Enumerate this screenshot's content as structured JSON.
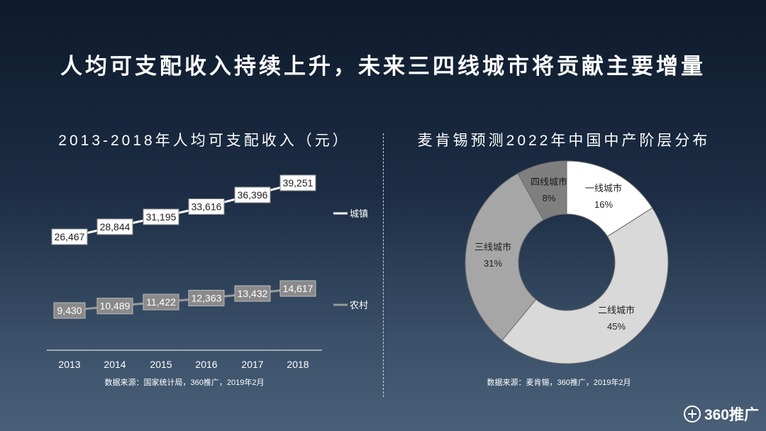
{
  "title": "人均可支配收入持续上升，未来三四线城市将贡献主要增量",
  "left_panel": {
    "subtitle": "2013-2018年人均可支配收入（元）",
    "source": "数据来源：国家统计局，360推广，2019年2月"
  },
  "right_panel": {
    "subtitle": "麦肯锡预测2022年中国中产阶层分布",
    "source": "数据来源：麦肯锡，360推广，2019年2月"
  },
  "logo": {
    "text": "360推广",
    "icon": "plus-circle-icon"
  },
  "chart_data": [
    {
      "type": "line",
      "categories": [
        "2013",
        "2014",
        "2015",
        "2016",
        "2017",
        "2018"
      ],
      "series": [
        {
          "name": "城镇",
          "values": [
            26467,
            28844,
            31195,
            33616,
            36396,
            39251
          ],
          "labels": [
            "26,467",
            "28,844",
            "31,195",
            "33,616",
            "36,396",
            "39,251"
          ],
          "color": "#ffffff"
        },
        {
          "name": "农村",
          "values": [
            9430,
            10489,
            11422,
            12363,
            13432,
            14617
          ],
          "labels": [
            "9,430",
            "10,489",
            "11,422",
            "12,363",
            "13,432",
            "14,617"
          ],
          "color": "#8a8a8a"
        }
      ],
      "grid": false,
      "legend": "right"
    },
    {
      "type": "pie",
      "donut": true,
      "slices": [
        {
          "name": "一线城市",
          "value": 16,
          "label": "16%",
          "color": "#ffffff"
        },
        {
          "name": "二线城市",
          "value": 45,
          "label": "45%",
          "color": "#d9d9d9"
        },
        {
          "name": "三线城市",
          "value": 31,
          "label": "31%",
          "color": "#a6a6a6"
        },
        {
          "name": "四线城市",
          "value": 8,
          "label": "8%",
          "color": "#7f7f7f"
        }
      ]
    }
  ]
}
